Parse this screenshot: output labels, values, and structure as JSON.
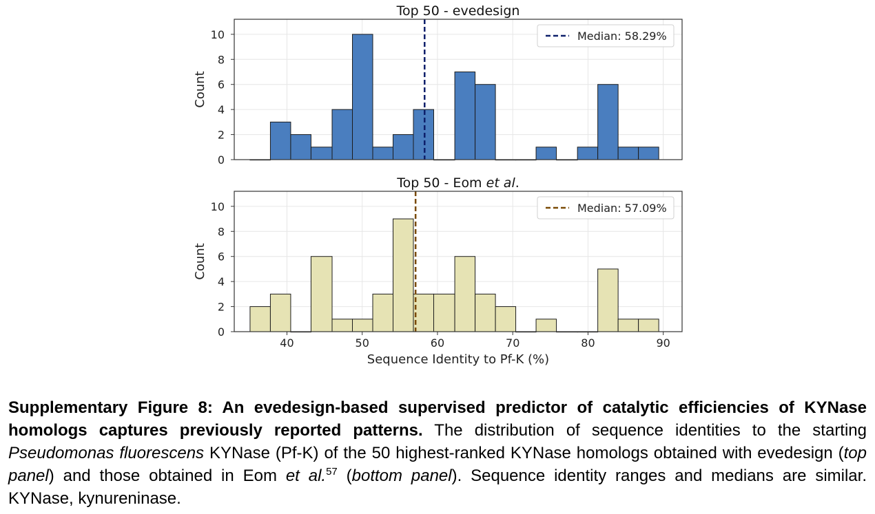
{
  "chart_data": [
    {
      "type": "bar",
      "title_main": "Top 50 - evedesign",
      "title_italic": "",
      "ylabel": "Count",
      "xlabel": "",
      "ylim": [
        0,
        11.2
      ],
      "xlim": [
        33,
        92.5
      ],
      "yticks": [
        "0",
        "2",
        "4",
        "6",
        "8",
        "10"
      ],
      "xticks": [],
      "bins": [
        {
          "start": 35.1,
          "end": 37.8,
          "count": 0
        },
        {
          "start": 37.8,
          "end": 40.5,
          "count": 3
        },
        {
          "start": 40.5,
          "end": 43.2,
          "count": 2
        },
        {
          "start": 43.2,
          "end": 46.0,
          "count": 1
        },
        {
          "start": 46.0,
          "end": 48.7,
          "count": 4
        },
        {
          "start": 48.7,
          "end": 51.4,
          "count": 10
        },
        {
          "start": 51.4,
          "end": 54.1,
          "count": 1
        },
        {
          "start": 54.1,
          "end": 56.8,
          "count": 2
        },
        {
          "start": 56.8,
          "end": 59.5,
          "count": 4
        },
        {
          "start": 59.5,
          "end": 62.3,
          "count": 0
        },
        {
          "start": 62.3,
          "end": 65.0,
          "count": 7
        },
        {
          "start": 65.0,
          "end": 67.7,
          "count": 6
        },
        {
          "start": 67.7,
          "end": 70.4,
          "count": 0
        },
        {
          "start": 70.4,
          "end": 73.1,
          "count": 0
        },
        {
          "start": 73.1,
          "end": 75.8,
          "count": 1
        },
        {
          "start": 75.8,
          "end": 78.6,
          "count": 0
        },
        {
          "start": 78.6,
          "end": 81.3,
          "count": 1
        },
        {
          "start": 81.3,
          "end": 84.0,
          "count": 6
        },
        {
          "start": 84.0,
          "end": 86.7,
          "count": 1
        },
        {
          "start": 86.7,
          "end": 89.4,
          "count": 1
        }
      ],
      "bar_color": "#4a7ebf",
      "median": 58.29,
      "median_color": "#0d1f6b",
      "legend": {
        "label": "Median: 58.29%",
        "position": "upper right"
      },
      "grid": true
    },
    {
      "type": "bar",
      "title_main": "Top 50 - Eom ",
      "title_italic": "et al",
      "title_suffix": ".",
      "ylabel": "Count",
      "xlabel": "Sequence Identity to Pf-K (%)",
      "ylim": [
        0,
        11.2
      ],
      "xlim": [
        33,
        92.5
      ],
      "yticks": [
        "0",
        "2",
        "4",
        "6",
        "8",
        "10"
      ],
      "xticks": [
        "40",
        "50",
        "60",
        "70",
        "80",
        "90"
      ],
      "bins": [
        {
          "start": 35.1,
          "end": 37.8,
          "count": 2
        },
        {
          "start": 37.8,
          "end": 40.5,
          "count": 3
        },
        {
          "start": 40.5,
          "end": 43.2,
          "count": 0
        },
        {
          "start": 43.2,
          "end": 46.0,
          "count": 6
        },
        {
          "start": 46.0,
          "end": 48.7,
          "count": 1
        },
        {
          "start": 48.7,
          "end": 51.4,
          "count": 1
        },
        {
          "start": 51.4,
          "end": 54.1,
          "count": 3
        },
        {
          "start": 54.1,
          "end": 56.8,
          "count": 9
        },
        {
          "start": 56.8,
          "end": 59.5,
          "count": 3
        },
        {
          "start": 59.5,
          "end": 62.3,
          "count": 3
        },
        {
          "start": 62.3,
          "end": 65.0,
          "count": 6
        },
        {
          "start": 65.0,
          "end": 67.7,
          "count": 3
        },
        {
          "start": 67.7,
          "end": 70.4,
          "count": 2
        },
        {
          "start": 70.4,
          "end": 73.1,
          "count": 0
        },
        {
          "start": 73.1,
          "end": 75.8,
          "count": 1
        },
        {
          "start": 75.8,
          "end": 78.6,
          "count": 0
        },
        {
          "start": 78.6,
          "end": 81.3,
          "count": 0
        },
        {
          "start": 81.3,
          "end": 84.0,
          "count": 5
        },
        {
          "start": 84.0,
          "end": 86.7,
          "count": 1
        },
        {
          "start": 86.7,
          "end": 89.4,
          "count": 1
        }
      ],
      "bar_color": "#e6e3b4",
      "median": 57.09,
      "median_color": "#7a4a05",
      "legend": {
        "label": "Median: 57.09%",
        "position": "upper right"
      },
      "grid": true
    }
  ],
  "caption": {
    "bold": "Supplementary Figure 8: An evedesign-based supervised predictor of catalytic efficiencies of KYNase homologs captures previously reported patterns.",
    "text1": " The distribution of sequence identities to the starting ",
    "italic1": "Pseudomonas fluorescens",
    "text2": " KYNase (Pf-K) of the 50 highest-ranked KYNase homologs obtained with evedesign (",
    "italic2": "top panel",
    "text3": ") and those obtained in Eom ",
    "italic3": "et al.",
    "sup": "57",
    "text4": " (",
    "italic4": "bottom panel",
    "text5": "). Sequence identity ranges and medians are similar. KYNase, kynureninase."
  }
}
